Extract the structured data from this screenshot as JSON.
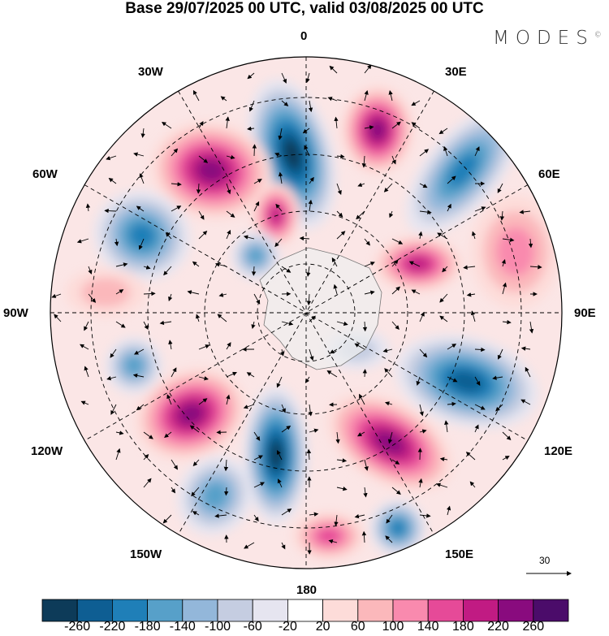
{
  "title": "Base 29/07/2025 00 UTC, valid 03/08/2025 00 UTC",
  "logo": "MODES",
  "logo_mark": "©",
  "longitude_labels": {
    "top": "0",
    "n30e": "30E",
    "n60e": "60E",
    "e90": "90E",
    "n120e": "120E",
    "n150e": "150E",
    "bottom": "180",
    "n150w": "150W",
    "n120w": "120W",
    "w90": "90W",
    "n60w": "60W",
    "n30w": "30W"
  },
  "vector_reference": "30",
  "colorbar": {
    "colors": [
      "#0d3b59",
      "#0e5e93",
      "#1f7fb8",
      "#57a0c9",
      "#93b7da",
      "#c5cde1",
      "#e6e5f0",
      "#ffffff",
      "#fddcd9",
      "#fbb8bb",
      "#f98aae",
      "#e64a98",
      "#c11b83",
      "#890b7e",
      "#4b0c6a"
    ],
    "ticks": [
      "-260",
      "-220",
      "-180",
      "-140",
      "-100",
      "-60",
      "-20",
      "20",
      "60",
      "100",
      "140",
      "180",
      "220",
      "260"
    ]
  }
}
